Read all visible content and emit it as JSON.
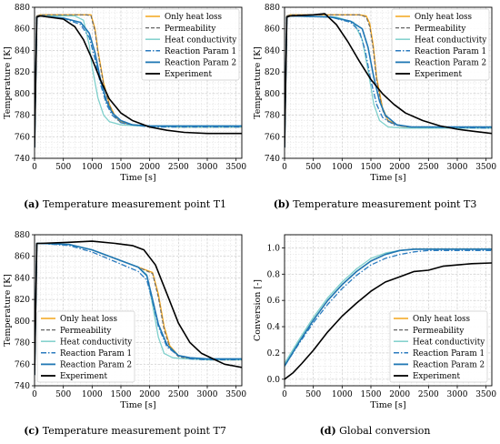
{
  "legend_labels": [
    "Only heat loss",
    "Permeability",
    "Heat conductivity",
    "Reaction Param 1",
    "Reaction Param 2",
    "Experiment"
  ],
  "colors": {
    "only_heat_loss": "#f2a51a",
    "permeability": "#666666",
    "heat_conductivity": "#7fd0cc",
    "reaction_param_1": "#2b7bbf",
    "reaction_param_2": "#1f77b4",
    "experiment": "#000000"
  },
  "captions": [
    {
      "tag": "(a)",
      "text": " Temperature measurement point T1"
    },
    {
      "tag": "(b)",
      "text": " Temperature measurement point T3"
    },
    {
      "tag": "(c)",
      "text": " Temperature measurement point T7"
    },
    {
      "tag": "(d)",
      "text": " Global conversion"
    }
  ],
  "chart_data": [
    {
      "type": "line",
      "xlabel": "Time [s]",
      "ylabel": "Temperature [K]",
      "xlim": [
        0,
        3600
      ],
      "ylim": [
        740,
        880
      ],
      "xticks": [
        0,
        500,
        1000,
        1500,
        2000,
        2500,
        3000,
        3500
      ],
      "yticks": [
        740,
        760,
        780,
        800,
        820,
        840,
        860,
        880
      ],
      "legend": "top-right",
      "grid": true,
      "series": [
        {
          "name": "Only heat loss",
          "x": [
            0,
            40,
            100,
            900,
            980,
            1050,
            1100,
            1200,
            1300,
            1400,
            1500,
            1700,
            2000,
            2500,
            3600
          ],
          "y": [
            750,
            872,
            873,
            873,
            873,
            860,
            840,
            810,
            790,
            779,
            774,
            771,
            770,
            769,
            769
          ]
        },
        {
          "name": "Permeability",
          "x": [
            0,
            40,
            100,
            900,
            980,
            1050,
            1100,
            1200,
            1300,
            1400,
            1500,
            1700,
            2000,
            2500,
            3600
          ],
          "y": [
            750,
            872,
            873,
            873,
            872,
            858,
            838,
            808,
            789,
            778,
            773,
            771,
            770,
            769,
            769
          ]
        },
        {
          "name": "Heat conductivity",
          "x": [
            0,
            40,
            100,
            700,
            850,
            950,
            1000,
            1100,
            1200,
            1300,
            1500,
            1800,
            2500,
            3600
          ],
          "y": [
            750,
            871,
            872,
            872,
            868,
            845,
            825,
            796,
            780,
            774,
            771,
            770,
            769,
            769
          ]
        },
        {
          "name": "Reaction Param 1",
          "x": [
            0,
            40,
            100,
            500,
            800,
            950,
            1050,
            1150,
            1250,
            1350,
            1500,
            1700,
            2000,
            3600
          ],
          "y": [
            750,
            871,
            872,
            870,
            864,
            852,
            832,
            808,
            790,
            780,
            773,
            771,
            769,
            769
          ]
        },
        {
          "name": "Reaction Param 2",
          "x": [
            0,
            40,
            100,
            500,
            800,
            950,
            1050,
            1150,
            1250,
            1350,
            1500,
            1700,
            2000,
            3600
          ],
          "y": [
            750,
            871,
            872,
            870,
            866,
            856,
            838,
            812,
            793,
            782,
            775,
            771,
            770,
            770
          ]
        },
        {
          "name": "Experiment",
          "x": [
            0,
            40,
            100,
            500,
            700,
            850,
            1000,
            1150,
            1300,
            1500,
            1700,
            2000,
            2300,
            2600,
            3000,
            3600
          ],
          "y": [
            750,
            871,
            872,
            869,
            862,
            850,
            832,
            812,
            795,
            782,
            775,
            769,
            766,
            764,
            763,
            763
          ]
        }
      ]
    },
    {
      "type": "line",
      "xlabel": "Time [s]",
      "ylabel": "Temperature [K]",
      "xlim": [
        0,
        3600
      ],
      "ylim": [
        740,
        880
      ],
      "xticks": [
        0,
        500,
        1000,
        1500,
        2000,
        2500,
        3000,
        3500
      ],
      "yticks": [
        740,
        760,
        780,
        800,
        820,
        840,
        860,
        880
      ],
      "legend": "top-right",
      "grid": true,
      "series": [
        {
          "name": "Only heat loss",
          "x": [
            0,
            40,
            100,
            1300,
            1420,
            1480,
            1540,
            1600,
            1700,
            1800,
            2000,
            2300,
            3600
          ],
          "y": [
            750,
            872,
            873,
            873,
            872,
            865,
            845,
            815,
            787,
            775,
            770,
            768,
            768
          ]
        },
        {
          "name": "Permeability",
          "x": [
            0,
            40,
            100,
            1300,
            1420,
            1480,
            1540,
            1600,
            1700,
            1800,
            2000,
            2300,
            3600
          ],
          "y": [
            750,
            872,
            873,
            873,
            871,
            862,
            842,
            812,
            785,
            774,
            770,
            768,
            768
          ]
        },
        {
          "name": "Heat conductivity",
          "x": [
            0,
            40,
            100,
            900,
            1200,
            1350,
            1450,
            1550,
            1650,
            1800,
            2100,
            3600
          ],
          "y": [
            750,
            871,
            872,
            871,
            866,
            850,
            822,
            790,
            775,
            769,
            768,
            768
          ]
        },
        {
          "name": "Reaction Param 1",
          "x": [
            0,
            40,
            100,
            800,
            1150,
            1300,
            1400,
            1500,
            1600,
            1700,
            1900,
            2200,
            3600
          ],
          "y": [
            750,
            871,
            872,
            871,
            866,
            858,
            840,
            812,
            790,
            778,
            771,
            769,
            768
          ]
        },
        {
          "name": "Reaction Param 2",
          "x": [
            0,
            40,
            100,
            800,
            1150,
            1350,
            1450,
            1550,
            1650,
            1750,
            1950,
            2200,
            3600
          ],
          "y": [
            750,
            871,
            872,
            871,
            867,
            860,
            843,
            815,
            793,
            780,
            771,
            769,
            769
          ]
        },
        {
          "name": "Experiment",
          "x": [
            0,
            40,
            100,
            500,
            700,
            900,
            1100,
            1300,
            1500,
            1700,
            1900,
            2100,
            2400,
            2700,
            3000,
            3300,
            3600
          ],
          "y": [
            750,
            871,
            872,
            873,
            874,
            864,
            848,
            830,
            813,
            800,
            790,
            782,
            775,
            770,
            767,
            765,
            763
          ]
        }
      ]
    },
    {
      "type": "line",
      "xlabel": "Time [s]",
      "ylabel": "Temperature [K]",
      "xlim": [
        0,
        3600
      ],
      "ylim": [
        740,
        880
      ],
      "xticks": [
        0,
        500,
        1000,
        1500,
        2000,
        2500,
        3000,
        3500
      ],
      "yticks": [
        740,
        760,
        780,
        800,
        820,
        840,
        860,
        880
      ],
      "legend": "bottom-left",
      "grid": true,
      "series": [
        {
          "name": "Only heat loss",
          "x": [
            0,
            40,
            100,
            600,
            1000,
            1400,
            1800,
            2050,
            2150,
            2250,
            2350,
            2500,
            2700,
            3000,
            3600
          ],
          "y": [
            750,
            872,
            872,
            871,
            866,
            858,
            850,
            845,
            825,
            795,
            777,
            768,
            765,
            764,
            764
          ]
        },
        {
          "name": "Permeability",
          "x": [
            0,
            40,
            100,
            600,
            1000,
            1400,
            1800,
            2050,
            2150,
            2250,
            2350,
            2500,
            2700,
            3000,
            3600
          ],
          "y": [
            750,
            872,
            872,
            871,
            866,
            858,
            850,
            844,
            822,
            792,
            775,
            767,
            765,
            764,
            764
          ]
        },
        {
          "name": "Heat conductivity",
          "x": [
            0,
            40,
            100,
            600,
            1000,
            1400,
            1800,
            1950,
            2050,
            2150,
            2250,
            2400,
            2600,
            3000,
            3600
          ],
          "y": [
            750,
            872,
            872,
            871,
            866,
            858,
            850,
            843,
            815,
            785,
            770,
            766,
            765,
            764,
            764
          ]
        },
        {
          "name": "Reaction Param 1",
          "x": [
            0,
            40,
            100,
            600,
            1000,
            1400,
            1800,
            1950,
            2050,
            2150,
            2300,
            2500,
            2700,
            3000,
            3600
          ],
          "y": [
            750,
            872,
            872,
            870,
            864,
            855,
            846,
            838,
            818,
            795,
            776,
            768,
            765,
            764,
            764
          ]
        },
        {
          "name": "Reaction Param 2",
          "x": [
            0,
            40,
            100,
            600,
            1000,
            1400,
            1800,
            1950,
            2050,
            2150,
            2300,
            2500,
            2700,
            3000,
            3600
          ],
          "y": [
            750,
            872,
            872,
            871,
            866,
            858,
            850,
            842,
            820,
            797,
            778,
            768,
            766,
            765,
            765
          ]
        },
        {
          "name": "Experiment",
          "x": [
            0,
            40,
            100,
            600,
            1000,
            1400,
            1700,
            1900,
            2100,
            2300,
            2500,
            2700,
            2900,
            3100,
            3300,
            3600
          ],
          "y": [
            750,
            872,
            872,
            873,
            874,
            872,
            870,
            866,
            852,
            825,
            798,
            780,
            770,
            765,
            760,
            757
          ]
        }
      ]
    },
    {
      "type": "line",
      "xlabel": "Time [s]",
      "ylabel": "Conversion [-]",
      "xlim": [
        0,
        3600
      ],
      "ylim": [
        -0.05,
        1.1
      ],
      "xticks": [
        0,
        500,
        1000,
        1500,
        2000,
        2500,
        3000,
        3500
      ],
      "yticks": [
        0.0,
        0.2,
        0.4,
        0.6,
        0.8,
        1.0
      ],
      "legend": "bottom-right",
      "grid": true,
      "series": [
        {
          "name": "Only heat loss",
          "x": [
            0,
            250,
            500,
            750,
            1000,
            1250,
            1500,
            1750,
            2000,
            2250,
            2500,
            3000,
            3600
          ],
          "y": [
            0.1,
            0.28,
            0.45,
            0.6,
            0.72,
            0.82,
            0.9,
            0.95,
            0.98,
            0.99,
            0.99,
            0.99,
            0.99
          ]
        },
        {
          "name": "Permeability",
          "x": [
            0,
            250,
            500,
            750,
            1000,
            1250,
            1500,
            1750,
            2000,
            2250,
            2500,
            3000,
            3600
          ],
          "y": [
            0.1,
            0.28,
            0.45,
            0.6,
            0.72,
            0.82,
            0.9,
            0.95,
            0.98,
            0.99,
            0.99,
            0.99,
            0.99
          ]
        },
        {
          "name": "Heat conductivity",
          "x": [
            0,
            250,
            500,
            750,
            1000,
            1250,
            1500,
            1750,
            2000,
            2250,
            2500,
            3000,
            3600
          ],
          "y": [
            0.12,
            0.3,
            0.47,
            0.62,
            0.74,
            0.84,
            0.92,
            0.96,
            0.98,
            0.99,
            0.99,
            0.99,
            0.99
          ]
        },
        {
          "name": "Reaction Param 1",
          "x": [
            0,
            250,
            500,
            750,
            1000,
            1250,
            1500,
            1750,
            2000,
            2250,
            2500,
            3000,
            3600
          ],
          "y": [
            0.1,
            0.27,
            0.43,
            0.57,
            0.69,
            0.79,
            0.87,
            0.92,
            0.95,
            0.97,
            0.98,
            0.98,
            0.98
          ]
        },
        {
          "name": "Reaction Param 2",
          "x": [
            0,
            250,
            500,
            750,
            1000,
            1250,
            1500,
            1750,
            2000,
            2250,
            2500,
            3000,
            3600
          ],
          "y": [
            0.1,
            0.28,
            0.45,
            0.6,
            0.72,
            0.82,
            0.9,
            0.95,
            0.98,
            0.99,
            0.99,
            0.99,
            0.99
          ]
        },
        {
          "name": "Experiment",
          "x": [
            0,
            150,
            300,
            500,
            750,
            1000,
            1250,
            1500,
            1750,
            2000,
            2250,
            2500,
            2750,
            3000,
            3250,
            3600
          ],
          "y": [
            0.0,
            0.05,
            0.12,
            0.22,
            0.36,
            0.48,
            0.58,
            0.67,
            0.74,
            0.78,
            0.82,
            0.83,
            0.86,
            0.87,
            0.88,
            0.885
          ]
        }
      ]
    }
  ]
}
